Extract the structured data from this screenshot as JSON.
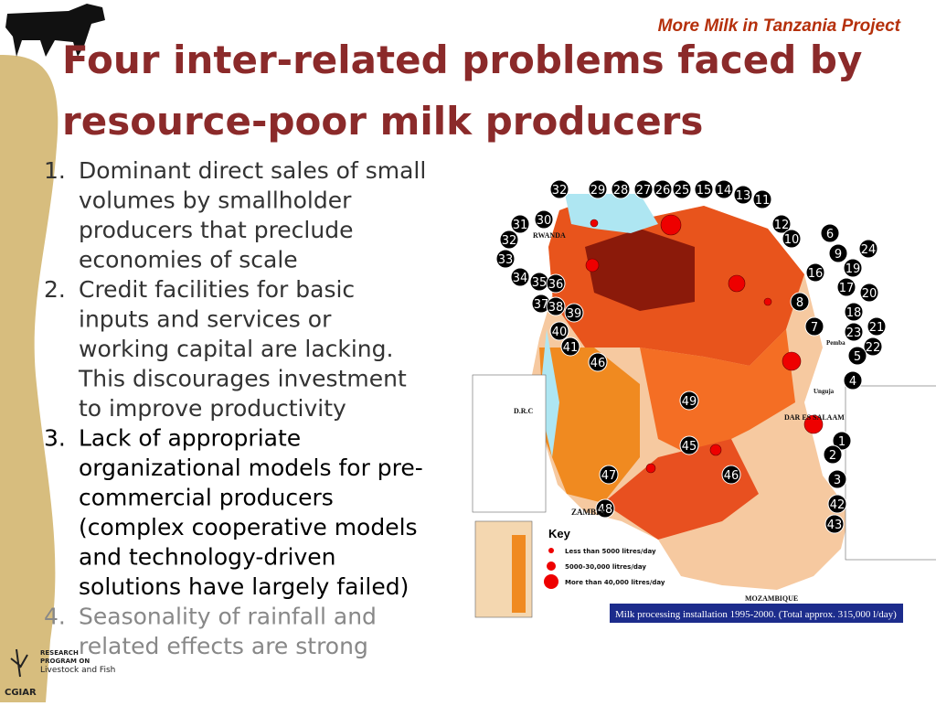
{
  "header": {
    "project": "More Milk in Tanzania Project",
    "title": [
      "Four inter-related problems faced by",
      "resource-poor milk producers"
    ]
  },
  "list": [
    {
      "number": "1.",
      "lines": [
        "Dominant direct sales of small",
        "volumes by smallholder",
        "producers that preclude",
        "economies of scale"
      ]
    },
    {
      "number": "2.",
      "lines": [
        "Credit facilities for basic",
        "inputs and services or",
        "working capital are lacking.",
        "This discourages investment",
        "to improve productivity"
      ]
    },
    {
      "number": "3.",
      "lines": [
        "Lack of appropriate",
        "organizational models for pre-",
        "commercial producers",
        "(complex cooperative models",
        "and technology-driven",
        "solutions have largely failed)"
      ]
    },
    {
      "number": "4.",
      "lines": [
        "Seasonality of rainfall  and",
        "related effects are strong"
      ]
    }
  ],
  "map": {
    "markers": [
      "32",
      "29",
      "28",
      "27",
      "26",
      "25",
      "15",
      "14",
      "13",
      "11",
      "12",
      "10",
      "6",
      "9",
      "24",
      "19",
      "16",
      "17",
      "20",
      "8",
      "18",
      "21",
      "7",
      "23",
      "22",
      "5",
      "4",
      "1",
      "2",
      "3",
      "42",
      "43",
      "30",
      "31",
      "32",
      "33",
      "34",
      "35",
      "36",
      "37",
      "38",
      "39",
      "40",
      "41",
      "46",
      "49",
      "45",
      "46",
      "47",
      "48"
    ],
    "places": [
      "RWANDA",
      "D.R.C",
      "ZAMBIA",
      "MOZAMBIQUE",
      "DAR ES SALAAM",
      "Pemba",
      "Unguja"
    ],
    "key": {
      "title": "Key",
      "items": [
        "Less than 5000 litres/day",
        "5000-30,000 litres/day",
        "More than 40,000 litres/day"
      ]
    },
    "caption": "Milk processing installation 1995-2000. (Total approx. 315,000 l/day)"
  },
  "logo": {
    "program": [
      "RESEARCH",
      "PROGRAM ON",
      "Livestock and Fish"
    ],
    "org": "CGIAR"
  }
}
